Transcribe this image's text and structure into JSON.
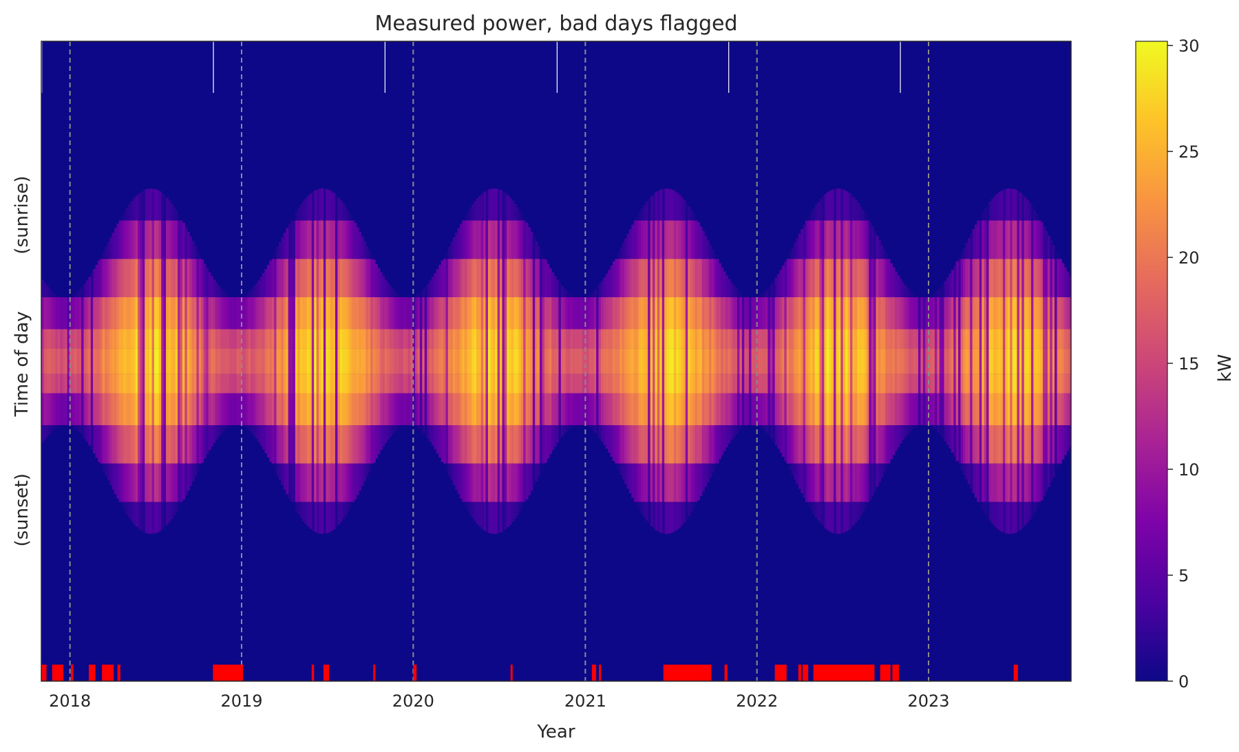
{
  "chart_data": {
    "type": "heatmap",
    "title": "Measured power, bad days flagged",
    "xlabel": "Year",
    "ylabel": "(sunset)          Time of day          (sunrise)",
    "x_ticks": [
      "2018",
      "2019",
      "2020",
      "2021",
      "2022",
      "2023"
    ],
    "x_range": [
      "2017-11-01",
      "2023-10-31"
    ],
    "colorbar": {
      "label": "kW",
      "range": [
        0,
        30.2
      ],
      "ticks": [
        0,
        5,
        10,
        15,
        20,
        25,
        30
      ],
      "colormap": "plasma"
    },
    "year_boundaries": [
      "2018-01-01",
      "2019-01-01",
      "2020-01-01",
      "2021-01-01",
      "2022-01-01",
      "2023-01-01"
    ],
    "missing_day_markers": [
      "2017-11-02",
      "2018-11-02",
      "2019-11-02",
      "2020-11-02",
      "2021-11-02",
      "2022-11-02"
    ],
    "flagged_bad_day_ranges": [
      [
        "2017-11-01",
        "2017-11-12"
      ],
      [
        "2017-11-24",
        "2017-12-18"
      ],
      [
        "2018-01-03",
        "2018-01-08"
      ],
      [
        "2018-02-10",
        "2018-02-24"
      ],
      [
        "2018-03-10",
        "2018-04-04"
      ],
      [
        "2018-04-12",
        "2018-04-18"
      ],
      [
        "2018-11-01",
        "2019-01-04"
      ],
      [
        "2019-05-30",
        "2019-06-04"
      ],
      [
        "2019-06-24",
        "2019-07-06"
      ],
      [
        "2019-10-08",
        "2019-10-12"
      ],
      [
        "2020-01-01",
        "2020-01-08"
      ],
      [
        "2020-07-26",
        "2020-07-30"
      ],
      [
        "2021-01-15",
        "2021-01-24"
      ],
      [
        "2021-01-30",
        "2021-02-03"
      ],
      [
        "2021-06-16",
        "2021-08-28"
      ],
      [
        "2021-08-28",
        "2021-09-26"
      ],
      [
        "2021-10-24",
        "2021-10-30"
      ],
      [
        "2022-02-08",
        "2022-03-05"
      ],
      [
        "2022-03-30",
        "2022-04-05"
      ],
      [
        "2022-04-08",
        "2022-04-20"
      ],
      [
        "2022-05-01",
        "2022-09-08"
      ],
      [
        "2022-09-20",
        "2022-10-12"
      ],
      [
        "2022-10-16",
        "2022-10-30"
      ],
      [
        "2023-07-01",
        "2023-07-10"
      ]
    ],
    "grid": false,
    "legend": "colorbar right"
  }
}
